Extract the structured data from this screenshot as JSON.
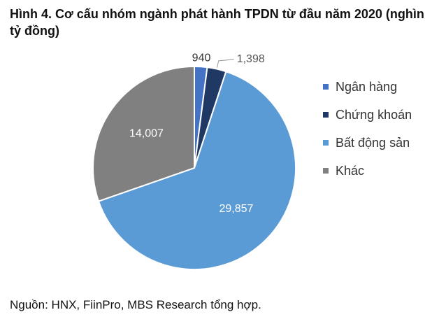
{
  "chart_data": {
    "type": "pie",
    "title": "Hình 4. Cơ cấu nhóm ngành phát hành TPDN từ đầu năm 2020 (nghìn tỷ đồng)",
    "categories": [
      "Ngân hàng",
      "Chứng khoán",
      "Bất động sản",
      "Khác"
    ],
    "values": [
      940,
      1398,
      29857,
      14007
    ],
    "value_labels": [
      "940",
      "1,398",
      "29,857",
      "14,007"
    ],
    "colors": [
      "#4472c4",
      "#1f3864",
      "#5b9bd5",
      "#808080"
    ],
    "legend": "right",
    "source": "Nguồn: HNX, FiinPro, MBS Research tổng hợp."
  }
}
